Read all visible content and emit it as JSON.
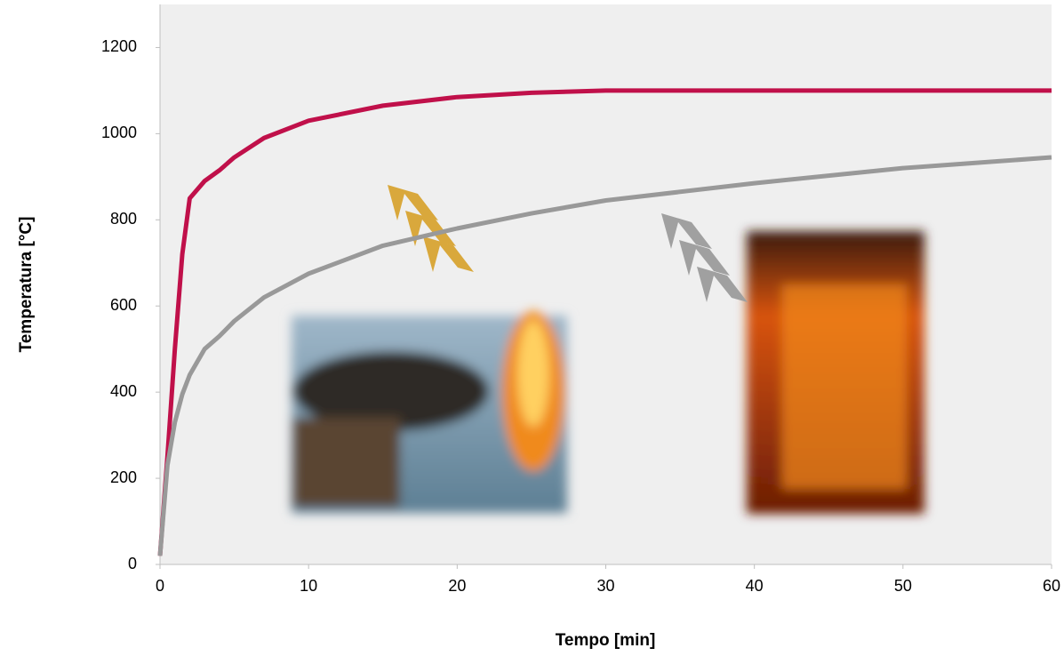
{
  "chart_data": {
    "type": "line",
    "xlabel": "Tempo [min]",
    "ylabel": "Temperatura [°C]",
    "x": [
      0,
      0.5,
      1,
      1.5,
      2,
      3,
      4,
      5,
      7,
      10,
      15,
      20,
      25,
      30,
      40,
      50,
      60
    ],
    "series": [
      {
        "color": "#c0104a",
        "values": [
          20,
          250,
          500,
          720,
          850,
          890,
          915,
          945,
          990,
          1030,
          1065,
          1085,
          1095,
          1100,
          1100,
          1100,
          1100
        ]
      },
      {
        "color": "#999999",
        "values": [
          20,
          230,
          330,
          395,
          440,
          500,
          530,
          565,
          620,
          675,
          740,
          780,
          815,
          845,
          885,
          920,
          945
        ]
      }
    ],
    "xlim": [
      0,
      60
    ],
    "xticks": [
      0,
      10,
      20,
      30,
      40,
      50,
      60
    ],
    "ylim": [
      0,
      1300
    ],
    "yticks": [
      0,
      200,
      400,
      600,
      800,
      1000,
      1200
    ],
    "grid": false
  }
}
